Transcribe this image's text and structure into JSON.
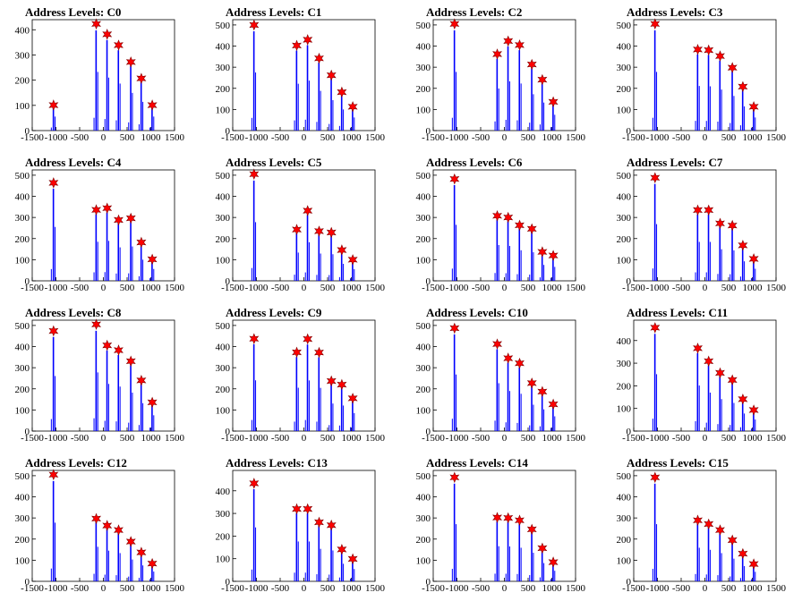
{
  "figure": {
    "title_prefix": "Address Levels: ",
    "colors": {
      "bars": "#0000ff",
      "markers": "#ff0000",
      "marker_stroke": "#800000",
      "axes": "#000000",
      "background": "#ffffff"
    }
  },
  "chart_data": [
    {
      "type": "bar",
      "title": "Address Levels: C0",
      "xlim": [
        -1500,
        1500
      ],
      "ylim": [
        0,
        440
      ],
      "xticks": [
        -1500,
        -1000,
        -500,
        0,
        500,
        1000,
        1500
      ],
      "yticks": [
        0,
        100,
        200,
        300,
        400
      ],
      "peaks_x": [
        -1050,
        -150,
        80,
        320,
        580,
        800,
        1030
      ],
      "peaks_y": [
        101,
        423,
        382,
        339,
        272,
        207,
        101
      ]
    },
    {
      "type": "bar",
      "title": "Address Levels: C1",
      "xlim": [
        -1500,
        1500
      ],
      "ylim": [
        0,
        525
      ],
      "xticks": [
        -1500,
        -1000,
        -500,
        0,
        500,
        1000,
        1500
      ],
      "yticks": [
        0,
        100,
        200,
        300,
        400,
        500
      ],
      "peaks_x": [
        -1050,
        -150,
        80,
        320,
        580,
        800,
        1030
      ],
      "peaks_y": [
        500,
        403,
        430,
        342,
        262,
        182,
        113
      ]
    },
    {
      "type": "bar",
      "title": "Address Levels: C2",
      "xlim": [
        -1500,
        1500
      ],
      "ylim": [
        0,
        525
      ],
      "xticks": [
        -1500,
        -1000,
        -500,
        0,
        500,
        1000,
        1500
      ],
      "yticks": [
        0,
        100,
        200,
        300,
        400,
        500
      ],
      "peaks_x": [
        -1050,
        -150,
        80,
        320,
        580,
        800,
        1030
      ],
      "peaks_y": [
        505,
        362,
        424,
        405,
        313,
        241,
        136
      ]
    },
    {
      "type": "bar",
      "title": "Address Levels: C3",
      "xlim": [
        -1500,
        1500
      ],
      "ylim": [
        0,
        525
      ],
      "xticks": [
        -1500,
        -1000,
        -500,
        0,
        500,
        1000,
        1500
      ],
      "yticks": [
        0,
        100,
        200,
        300,
        400,
        500
      ],
      "peaks_x": [
        -1050,
        -150,
        80,
        320,
        580,
        800,
        1030
      ],
      "peaks_y": [
        505,
        384,
        381,
        353,
        298,
        208,
        113
      ]
    },
    {
      "type": "bar",
      "title": "Address Levels: C4",
      "xlim": [
        -1500,
        1500
      ],
      "ylim": [
        0,
        525
      ],
      "xticks": [
        -1500,
        -1000,
        -500,
        0,
        500,
        1000,
        1500
      ],
      "yticks": [
        0,
        100,
        200,
        300,
        400,
        500
      ],
      "peaks_x": [
        -1050,
        -150,
        80,
        320,
        580,
        800,
        1030
      ],
      "peaks_y": [
        464,
        336,
        344,
        288,
        296,
        182,
        102
      ]
    },
    {
      "type": "bar",
      "title": "Address Levels: C5",
      "xlim": [
        -1500,
        1500
      ],
      "ylim": [
        0,
        525
      ],
      "xticks": [
        -1500,
        -1000,
        -500,
        0,
        500,
        1000,
        1500
      ],
      "yticks": [
        0,
        100,
        200,
        300,
        400,
        500
      ],
      "peaks_x": [
        -1050,
        -150,
        80,
        320,
        580,
        800,
        1030
      ],
      "peaks_y": [
        505,
        243,
        332,
        235,
        229,
        146,
        100
      ]
    },
    {
      "type": "bar",
      "title": "Address Levels: C6",
      "xlim": [
        -1500,
        1500
      ],
      "ylim": [
        0,
        525
      ],
      "xticks": [
        -1500,
        -1000,
        -500,
        0,
        500,
        1000,
        1500
      ],
      "yticks": [
        0,
        100,
        200,
        300,
        400,
        500
      ],
      "peaks_x": [
        -1050,
        -150,
        80,
        320,
        580,
        800,
        1030
      ],
      "peaks_y": [
        482,
        308,
        300,
        263,
        246,
        137,
        120
      ]
    },
    {
      "type": "bar",
      "title": "Address Levels: C7",
      "xlim": [
        -1500,
        1500
      ],
      "ylim": [
        0,
        525
      ],
      "xticks": [
        -1500,
        -1000,
        -500,
        0,
        500,
        1000,
        1500
      ],
      "yticks": [
        0,
        100,
        200,
        300,
        400,
        500
      ],
      "peaks_x": [
        -1050,
        -150,
        80,
        320,
        580,
        800,
        1030
      ],
      "peaks_y": [
        488,
        335,
        335,
        272,
        262,
        168,
        104
      ]
    },
    {
      "type": "bar",
      "title": "Address Levels: C8",
      "xlim": [
        -1500,
        1500
      ],
      "ylim": [
        0,
        525
      ],
      "xticks": [
        -1500,
        -1000,
        -500,
        0,
        500,
        1000,
        1500
      ],
      "yticks": [
        0,
        100,
        200,
        300,
        400,
        500
      ],
      "peaks_x": [
        -1050,
        -150,
        80,
        320,
        580,
        800,
        1030
      ],
      "peaks_y": [
        474,
        505,
        406,
        383,
        331,
        240,
        136
      ]
    },
    {
      "type": "bar",
      "title": "Address Levels: C9",
      "xlim": [
        -1500,
        1500
      ],
      "ylim": [
        0,
        525
      ],
      "xticks": [
        -1500,
        -1000,
        -500,
        0,
        500,
        1000,
        1500
      ],
      "yticks": [
        0,
        100,
        200,
        300,
        400,
        500
      ],
      "peaks_x": [
        -1050,
        -150,
        80,
        320,
        580,
        800,
        1030
      ],
      "peaks_y": [
        437,
        373,
        436,
        372,
        237,
        220,
        155
      ]
    },
    {
      "type": "bar",
      "title": "Address Levels: C10",
      "xlim": [
        -1500,
        1500
      ],
      "ylim": [
        0,
        525
      ],
      "xticks": [
        -1500,
        -1000,
        -500,
        0,
        500,
        1000,
        1500
      ],
      "yticks": [
        0,
        100,
        200,
        300,
        400,
        500
      ],
      "peaks_x": [
        -1050,
        -150,
        80,
        320,
        580,
        800,
        1030
      ],
      "peaks_y": [
        487,
        412,
        345,
        321,
        227,
        187,
        127
      ]
    },
    {
      "type": "bar",
      "title": "Address Levels: C11",
      "xlim": [
        -1500,
        1500
      ],
      "ylim": [
        0,
        490
      ],
      "xticks": [
        -1500,
        -1000,
        -500,
        0,
        500,
        1000,
        1500
      ],
      "yticks": [
        0,
        100,
        200,
        300,
        400
      ],
      "peaks_x": [
        -1050,
        -150,
        80,
        320,
        580,
        800,
        1030
      ],
      "peaks_y": [
        457,
        366,
        309,
        257,
        226,
        141,
        93
      ]
    },
    {
      "type": "bar",
      "title": "Address Levels: C12",
      "xlim": [
        -1500,
        1500
      ],
      "ylim": [
        0,
        525
      ],
      "xticks": [
        -1500,
        -1000,
        -500,
        0,
        500,
        1000,
        1500
      ],
      "yticks": [
        0,
        100,
        200,
        300,
        400,
        500
      ],
      "peaks_x": [
        -1050,
        -150,
        80,
        320,
        580,
        800,
        1030
      ],
      "peaks_y": [
        505,
        297,
        264,
        243,
        188,
        137,
        84
      ]
    },
    {
      "type": "bar",
      "title": "Address Levels: C13",
      "xlim": [
        -1500,
        1500
      ],
      "ylim": [
        0,
        490
      ],
      "xticks": [
        -1500,
        -1000,
        -500,
        0,
        500,
        1000,
        1500
      ],
      "yticks": [
        0,
        100,
        200,
        300,
        400
      ],
      "peaks_x": [
        -1050,
        -150,
        80,
        320,
        580,
        800,
        1030
      ],
      "peaks_y": [
        433,
        320,
        320,
        261,
        248,
        141,
        99
      ]
    },
    {
      "type": "bar",
      "title": "Address Levels: C14",
      "xlim": [
        -1500,
        1500
      ],
      "ylim": [
        0,
        525
      ],
      "xticks": [
        -1500,
        -1000,
        -500,
        0,
        500,
        1000,
        1500
      ],
      "yticks": [
        0,
        100,
        200,
        300,
        400,
        500
      ],
      "peaks_x": [
        -1050,
        -150,
        80,
        320,
        580,
        800,
        1030
      ],
      "peaks_y": [
        492,
        302,
        300,
        289,
        246,
        157,
        91
      ]
    },
    {
      "type": "bar",
      "title": "Address Levels: C15",
      "xlim": [
        -1500,
        1500
      ],
      "ylim": [
        0,
        525
      ],
      "xticks": [
        -1500,
        -1000,
        -500,
        0,
        500,
        1000,
        1500
      ],
      "yticks": [
        0,
        100,
        200,
        300,
        400,
        500
      ],
      "peaks_x": [
        -1050,
        -150,
        80,
        320,
        580,
        800,
        1030
      ],
      "peaks_y": [
        492,
        289,
        271,
        243,
        195,
        131,
        82
      ]
    }
  ]
}
